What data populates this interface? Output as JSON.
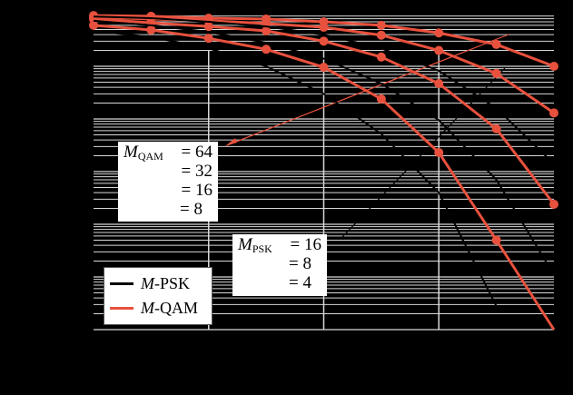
{
  "chart_data": {
    "type": "line",
    "title": "",
    "xlabel": "",
    "ylabel": "",
    "yscale": "log",
    "ylim": [
      1e-06,
      1
    ],
    "xlim": [
      0,
      20
    ],
    "x_gridlines": [
      5,
      10,
      15
    ],
    "y_decade_gridlines": [
      0.1,
      0.01,
      0.001,
      0.0001,
      1e-05
    ],
    "tick_labels_visible": false,
    "grid": true,
    "x": [
      0,
      2.5,
      5,
      7.5,
      10,
      12.5,
      15,
      17.5,
      20
    ],
    "series": [
      {
        "name": "M-QAM, M=64",
        "family": "M-QAM",
        "M": 64,
        "color": "#e8513d",
        "marker": "circle",
        "values": [
          0.92,
          0.89,
          0.82,
          0.79,
          0.7,
          0.6,
          0.43,
          0.26,
          0.1
        ]
      },
      {
        "name": "M-QAM, M=32",
        "family": "M-QAM",
        "M": 32,
        "color": "#e8513d",
        "marker": "circle",
        "values": [
          0.85,
          0.79,
          0.73,
          0.65,
          0.55,
          0.39,
          0.2,
          0.073,
          0.013
        ]
      },
      {
        "name": "M-QAM, M=16",
        "family": "M-QAM",
        "M": 16,
        "color": "#e8513d",
        "marker": "circle",
        "values": [
          0.79,
          0.67,
          0.57,
          0.47,
          0.3,
          0.15,
          0.047,
          0.0065,
          0.00024
        ]
      },
      {
        "name": "M-QAM, M=8",
        "family": "M-QAM",
        "M": 8,
        "color": "#e8513d",
        "marker": "circle",
        "values": [
          0.6,
          0.49,
          0.34,
          0.21,
          0.096,
          0.024,
          0.0023,
          5e-05,
          9e-07
        ]
      },
      {
        "name": "M-PSK, M=16",
        "family": "M-PSK",
        "M": 16,
        "color": "#000000",
        "marker": "none",
        "values": [
          0.88,
          0.82,
          0.7,
          0.57,
          0.4,
          0.22,
          0.082,
          0.016,
          0.0014
        ]
      },
      {
        "name": "M-PSK, M=8",
        "family": "M-PSK",
        "M": 8,
        "color": "#000000",
        "marker": "none",
        "values": [
          0.73,
          0.6,
          0.45,
          0.28,
          0.14,
          0.047,
          0.0095,
          0.0007,
          1.1e-05
        ]
      },
      {
        "name": "M-PSK, M=4",
        "family": "M-PSK",
        "M": 4,
        "color": "#000000",
        "marker": "none",
        "values": [
          0.47,
          0.36,
          0.22,
          0.1,
          0.03,
          0.0052,
          0.0004,
          2.8e-06,
          null
        ]
      }
    ],
    "legend": {
      "position": "lower left",
      "entries": [
        {
          "label_italic": "M",
          "label_rest": "-PSK",
          "color": "#000000"
        },
        {
          "label_italic": "M",
          "label_rest": "-QAM",
          "color": "#e8513d"
        }
      ]
    },
    "annotations": [
      {
        "id": "qam",
        "symbol": "M",
        "subscript": "QAM",
        "rows": [
          "= 64",
          "= 32",
          "= 16",
          "= 8"
        ],
        "arrow_color": "#e8513d"
      },
      {
        "id": "psk",
        "symbol": "M",
        "subscript": "PSK",
        "rows": [
          "= 16",
          "= 8",
          "= 4"
        ],
        "arrow_color": "#000000"
      }
    ]
  },
  "legend_labels": {
    "psk_italic": "M",
    "psk_rest": "-PSK",
    "qam_italic": "M",
    "qam_rest": "-QAM"
  },
  "annotation_qam": {
    "symbol": "M",
    "subscript": "QAM",
    "row0": "= 64",
    "row1": "= 32",
    "row2": "= 16",
    "row3": "= 8"
  },
  "annotation_psk": {
    "symbol": "M",
    "subscript": "PSK",
    "row0": "= 16",
    "row1": "= 8",
    "row2": "= 4"
  }
}
